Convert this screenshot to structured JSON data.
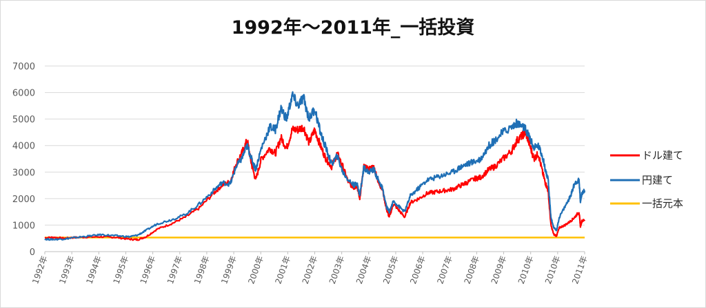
{
  "chart_data": {
    "type": "line",
    "title": "1992年～2011年_一括投資",
    "xlabel": "",
    "ylabel": "",
    "ylim": [
      0,
      7000
    ],
    "yticks": [
      0,
      1000,
      2000,
      3000,
      4000,
      5000,
      6000,
      7000
    ],
    "xlim": [
      1992,
      2011.2
    ],
    "xtick_labels": [
      "1992年",
      "1993年",
      "1994年",
      "1995年",
      "1996年",
      "1997年",
      "1998年",
      "1999年",
      "2000年",
      "2001年",
      "2002年",
      "2003年",
      "2004年",
      "2005年",
      "2006年",
      "2007年",
      "2008年",
      "2009年",
      "2010年",
      "2010年",
      "2011年"
    ],
    "grid": true,
    "legend_position": "right",
    "series": [
      {
        "name": "ドル建て",
        "color": "#ff0000",
        "points": [
          [
            1992.0,
            520
          ],
          [
            1992.3,
            540
          ],
          [
            1992.7,
            500
          ],
          [
            1993.0,
            530
          ],
          [
            1993.5,
            550
          ],
          [
            1994.0,
            560
          ],
          [
            1994.5,
            540
          ],
          [
            1995.0,
            470
          ],
          [
            1995.3,
            450
          ],
          [
            1995.6,
            560
          ],
          [
            1996.0,
            850
          ],
          [
            1996.5,
            1050
          ],
          [
            1997.0,
            1300
          ],
          [
            1997.5,
            1650
          ],
          [
            1998.0,
            2200
          ],
          [
            1998.3,
            2500
          ],
          [
            1998.6,
            2650
          ],
          [
            1998.8,
            3300
          ],
          [
            1999.0,
            3700
          ],
          [
            1999.2,
            4200
          ],
          [
            1999.35,
            3300
          ],
          [
            1999.5,
            2700
          ],
          [
            1999.7,
            3500
          ],
          [
            2000.0,
            3900
          ],
          [
            2000.2,
            3700
          ],
          [
            2000.4,
            4300
          ],
          [
            2000.6,
            3900
          ],
          [
            2000.8,
            4600
          ],
          [
            2001.0,
            4600
          ],
          [
            2001.2,
            4700
          ],
          [
            2001.4,
            4100
          ],
          [
            2001.6,
            4600
          ],
          [
            2001.8,
            4000
          ],
          [
            2002.0,
            3500
          ],
          [
            2002.2,
            3200
          ],
          [
            2002.4,
            3700
          ],
          [
            2002.6,
            3200
          ],
          [
            2002.8,
            2600
          ],
          [
            2003.0,
            2400
          ],
          [
            2003.1,
            2500
          ],
          [
            2003.2,
            2000
          ],
          [
            2003.35,
            3200
          ],
          [
            2003.5,
            3100
          ],
          [
            2003.7,
            3200
          ],
          [
            2003.9,
            2500
          ],
          [
            2004.0,
            2400
          ],
          [
            2004.15,
            1600
          ],
          [
            2004.25,
            1300
          ],
          [
            2004.4,
            1800
          ],
          [
            2004.6,
            1550
          ],
          [
            2004.8,
            1300
          ],
          [
            2005.0,
            1850
          ],
          [
            2005.3,
            2000
          ],
          [
            2005.6,
            2200
          ],
          [
            2005.9,
            2250
          ],
          [
            2006.2,
            2300
          ],
          [
            2006.5,
            2350
          ],
          [
            2006.8,
            2500
          ],
          [
            2007.0,
            2600
          ],
          [
            2007.3,
            2750
          ],
          [
            2007.5,
            2800
          ],
          [
            2007.8,
            3100
          ],
          [
            2008.0,
            3200
          ],
          [
            2008.3,
            3500
          ],
          [
            2008.6,
            3800
          ],
          [
            2008.8,
            4200
          ],
          [
            2009.0,
            4400
          ],
          [
            2009.1,
            4500
          ],
          [
            2009.25,
            4000
          ],
          [
            2009.4,
            3500
          ],
          [
            2009.55,
            3700
          ],
          [
            2009.7,
            3000
          ],
          [
            2009.8,
            2600
          ],
          [
            2009.9,
            2300
          ],
          [
            2010.0,
            1000
          ],
          [
            2010.1,
            650
          ],
          [
            2010.2,
            600
          ],
          [
            2010.3,
            900
          ],
          [
            2010.5,
            1000
          ],
          [
            2010.7,
            1150
          ],
          [
            2010.85,
            1300
          ],
          [
            2011.0,
            1500
          ],
          [
            2011.05,
            950
          ],
          [
            2011.1,
            1150
          ],
          [
            2011.2,
            1200
          ]
        ]
      },
      {
        "name": "円建て",
        "color": "#1f6fb5",
        "points": [
          [
            1992.0,
            470
          ],
          [
            1992.3,
            460
          ],
          [
            1992.7,
            480
          ],
          [
            1993.0,
            520
          ],
          [
            1993.5,
            580
          ],
          [
            1994.0,
            640
          ],
          [
            1994.5,
            600
          ],
          [
            1995.0,
            560
          ],
          [
            1995.3,
            620
          ],
          [
            1995.6,
            800
          ],
          [
            1996.0,
            1050
          ],
          [
            1996.5,
            1200
          ],
          [
            1997.0,
            1400
          ],
          [
            1997.5,
            1800
          ],
          [
            1998.0,
            2300
          ],
          [
            1998.3,
            2600
          ],
          [
            1998.6,
            2550
          ],
          [
            1998.8,
            3200
          ],
          [
            1999.0,
            3500
          ],
          [
            1999.2,
            4000
          ],
          [
            1999.35,
            3500
          ],
          [
            1999.5,
            3100
          ],
          [
            1999.7,
            3900
          ],
          [
            2000.0,
            4700
          ],
          [
            2000.2,
            4600
          ],
          [
            2000.4,
            5400
          ],
          [
            2000.6,
            5000
          ],
          [
            2000.8,
            5900
          ],
          [
            2001.0,
            5500
          ],
          [
            2001.2,
            5800
          ],
          [
            2001.4,
            5000
          ],
          [
            2001.6,
            5400
          ],
          [
            2001.8,
            4500
          ],
          [
            2002.0,
            3900
          ],
          [
            2002.2,
            3300
          ],
          [
            2002.4,
            3600
          ],
          [
            2002.6,
            3000
          ],
          [
            2002.8,
            2700
          ],
          [
            2003.0,
            2500
          ],
          [
            2003.1,
            2600
          ],
          [
            2003.2,
            2100
          ],
          [
            2003.35,
            3200
          ],
          [
            2003.5,
            3000
          ],
          [
            2003.7,
            3100
          ],
          [
            2003.9,
            2600
          ],
          [
            2004.0,
            2400
          ],
          [
            2004.15,
            1700
          ],
          [
            2004.25,
            1500
          ],
          [
            2004.4,
            1900
          ],
          [
            2004.6,
            1700
          ],
          [
            2004.8,
            1500
          ],
          [
            2005.0,
            2100
          ],
          [
            2005.3,
            2400
          ],
          [
            2005.6,
            2700
          ],
          [
            2005.9,
            2800
          ],
          [
            2006.2,
            2900
          ],
          [
            2006.5,
            3000
          ],
          [
            2006.8,
            3200
          ],
          [
            2007.0,
            3300
          ],
          [
            2007.3,
            3400
          ],
          [
            2007.5,
            3500
          ],
          [
            2007.8,
            4000
          ],
          [
            2008.0,
            4200
          ],
          [
            2008.3,
            4500
          ],
          [
            2008.6,
            4700
          ],
          [
            2008.8,
            4850
          ],
          [
            2009.0,
            4700
          ],
          [
            2009.1,
            4600
          ],
          [
            2009.25,
            4300
          ],
          [
            2009.4,
            3900
          ],
          [
            2009.55,
            4000
          ],
          [
            2009.7,
            3600
          ],
          [
            2009.8,
            3100
          ],
          [
            2009.9,
            2700
          ],
          [
            2010.0,
            1300
          ],
          [
            2010.1,
            900
          ],
          [
            2010.2,
            800
          ],
          [
            2010.3,
            1300
          ],
          [
            2010.5,
            1700
          ],
          [
            2010.7,
            2100
          ],
          [
            2010.85,
            2600
          ],
          [
            2011.0,
            2700
          ],
          [
            2011.05,
            1900
          ],
          [
            2011.1,
            2200
          ],
          [
            2011.2,
            2300
          ]
        ]
      },
      {
        "name": "一括元本",
        "color": "#ffc000",
        "points": [
          [
            1992.0,
            530
          ],
          [
            2011.2,
            530
          ]
        ]
      }
    ]
  }
}
